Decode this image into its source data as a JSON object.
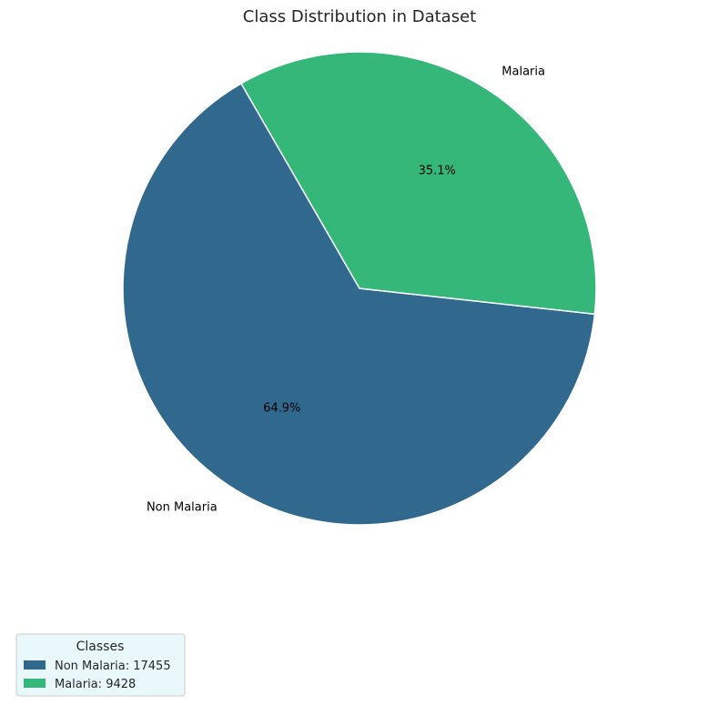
{
  "chart_data": {
    "type": "pie",
    "title": "Class Distribution in Dataset",
    "start_angle_deg": 120,
    "slices": [
      {
        "label": "Non Malaria",
        "value": 17455,
        "percent_label": "64.9%",
        "color": "#31688e"
      },
      {
        "label": "Malaria",
        "value": 9428,
        "percent_label": "35.1%",
        "color": "#35b779"
      }
    ],
    "legend": {
      "title": "Classes",
      "placement": "bottom-left",
      "background": "#e8f8fb",
      "entries": [
        {
          "text": "Non Malaria: 17455",
          "color": "#31688e"
        },
        {
          "text": "Malaria: 9428",
          "color": "#35b779"
        }
      ]
    }
  }
}
